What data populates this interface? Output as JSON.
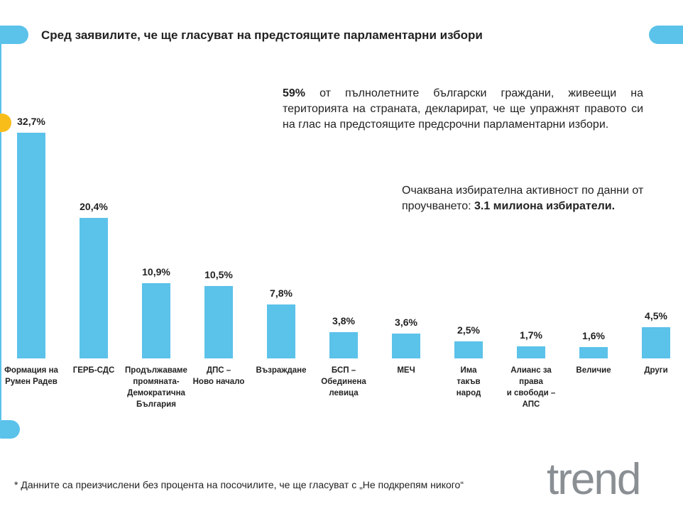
{
  "chart_data": {
    "type": "bar",
    "title": "Сред заявилите, че ще гласуват на предстоящите парламентарни избори",
    "categories": [
      "Формация на\nРумен Радев",
      "ГЕРБ-СДС",
      "Продължаваме\nпромяната-\nДемократична\nБългария",
      "ДПС –\nНово начало",
      "Възраждане",
      "БСП –\nОбединена\nлевица",
      "МЕЧ",
      "Има\nтакъв\nнарод",
      "Алианс за\nправа\nи свободи –\nАПС",
      "Величие",
      "Други"
    ],
    "values": [
      32.7,
      20.4,
      10.9,
      10.5,
      7.8,
      3.8,
      3.6,
      2.5,
      1.7,
      1.6,
      4.5
    ],
    "value_labels": [
      "32,7%",
      "20,4%",
      "10,9%",
      "10,5%",
      "7,8%",
      "3,8%",
      "3,6%",
      "2,5%",
      "1,7%",
      "1,6%",
      "4,5%"
    ],
    "color": "#5bc2ea"
  },
  "summary": {
    "highlight": "59%",
    "text": " от пълнолетните български граждани, живеещи на територията на страната, декларират, че ще упражнят правото си на глас на предстоящите предсрочни парламентарни избори."
  },
  "turnout": {
    "text": "Очаквана избирателна активност по данни от проучването: ",
    "highlight": "3.1 милиона избиратели."
  },
  "footnote": "* Данните са преизчислени без процента на посочилите, че ще гласуват с „Не подкрепям никого“",
  "logo": "trend"
}
